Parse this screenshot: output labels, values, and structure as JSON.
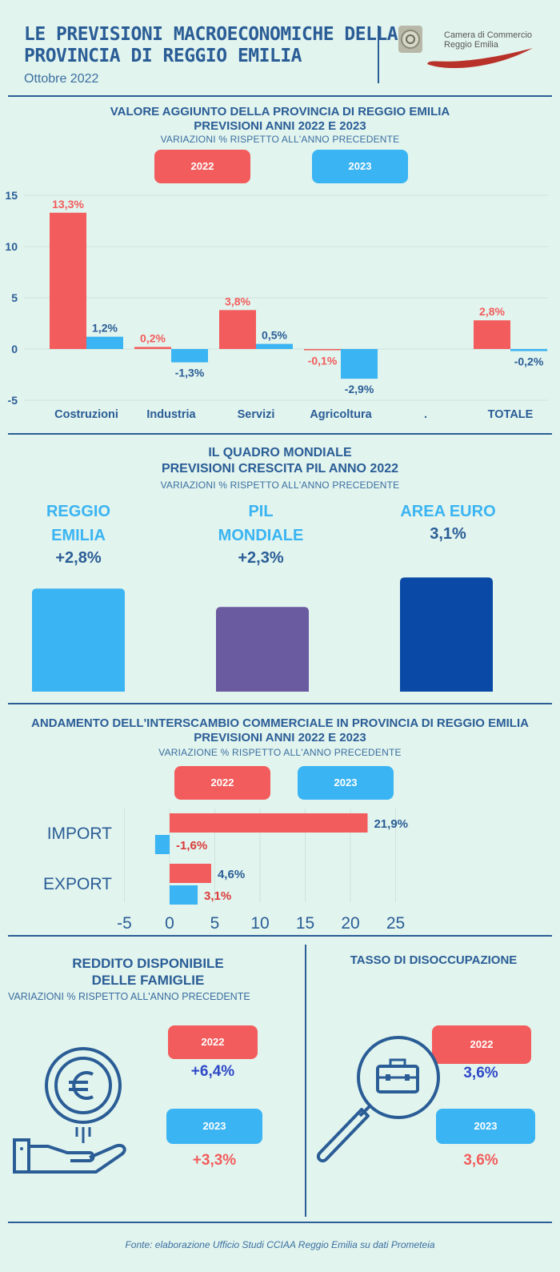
{
  "header": {
    "title_line1": "LE PREVISIONI MACROECONOMICHE DELLA",
    "title_line2": "PROVINCIA DI REGGIO EMILIA",
    "date": "Ottobre 2022",
    "logo_line1": "Camera di Commercio",
    "logo_line2": "Reggio Emilia"
  },
  "section1": {
    "title_line1": "VALORE AGGIUNTO DELLA PROVINCIA DI REGGIO EMILIA",
    "title_line2": "PREVISIONI ANNI 2022 E 2023",
    "subtitle": "VARIAZIONI % RISPETTO ALL'ANNO PRECEDENTE",
    "legend_2022": "2022",
    "legend_2023": "2023"
  },
  "section2": {
    "title_line1": "IL QUADRO MONDIALE",
    "title_line2": "PREVISIONI CRESCITA PIL ANNO 2022",
    "subtitle": "VARIAZIONI % RISPETTO ALL'ANNO PRECEDENTE",
    "items": [
      {
        "label_line1": "REGGIO",
        "label_line2": "EMILIA",
        "value": "+2,8%"
      },
      {
        "label_line1": "PIL",
        "label_line2": "MONDIALE",
        "value": "+2,3%"
      },
      {
        "label_line1": "AREA EURO",
        "label_line2": "",
        "value": "3,1%"
      }
    ]
  },
  "section3": {
    "title_line1": "ANDAMENTO DELL'INTERSCAMBIO COMMERCIALE IN PROVINCIA DI REGGIO EMILIA",
    "title_line2": "PREVISIONI ANNI 2022 E 2023",
    "subtitle": "VARIAZIONE % RISPETTO ALL'ANNO PRECEDENTE",
    "legend_2022": "2022",
    "legend_2023": "2023"
  },
  "section4": {
    "left_title_line1": "REDDITO DISPONIBILE",
    "left_title_line2": "DELLE FAMIGLIE",
    "left_subtitle": "VARIAZIONI % RISPETTO ALL'ANNO PRECEDENTE",
    "left_2022_label": "2022",
    "left_2022_value": "+6,4%",
    "left_2023_label": "2023",
    "left_2023_value": "+3,3%",
    "right_title": "TASSO DI DISOCCUPAZIONE",
    "right_2022_label": "2022",
    "right_2022_value": "3,6%",
    "right_2023_label": "2023",
    "right_2023_value": "3,6%"
  },
  "footer": {
    "source": "Fonte: elaborazione Ufficio Studi CCIAA Reggio Emilia su dati Prometeia"
  },
  "colors": {
    "red": "#f25c5c",
    "blue": "#3ab4f2",
    "navy": "#2a5d96",
    "purple": "#6a5aa0",
    "dark_blue": "#0a4aa6"
  },
  "chart_data": [
    {
      "type": "bar",
      "title": "VALORE AGGIUNTO DELLA PROVINCIA DI REGGIO EMILIA",
      "categories": [
        "Costruzioni",
        "Industria",
        "Servizi",
        "Agricoltura",
        ".",
        "TOTALE"
      ],
      "series": [
        {
          "name": "2022",
          "values": [
            13.3,
            0.2,
            3.8,
            -0.1,
            null,
            2.8
          ],
          "labels": [
            "13,3%",
            "0,2%",
            "3,8%",
            "-0,1%",
            "",
            "2,8%"
          ]
        },
        {
          "name": "2023",
          "values": [
            1.2,
            -1.3,
            0.5,
            -2.9,
            null,
            -0.2
          ],
          "labels": [
            "1,2%",
            "-1,3%",
            "0,5%",
            "-2,9%",
            "",
            "-0,2%"
          ]
        }
      ],
      "yticks": [
        "15",
        "10",
        "5",
        "0",
        "-5"
      ],
      "ylim": [
        -5,
        15
      ]
    },
    {
      "type": "bar",
      "title": "PREVISIONI CRESCITA PIL ANNO 2022",
      "categories": [
        "REGGIO EMILIA",
        "PIL MONDIALE",
        "AREA EURO"
      ],
      "values": [
        2.8,
        2.3,
        3.1
      ]
    },
    {
      "type": "bar",
      "orientation": "horizontal",
      "title": "ANDAMENTO DELL'INTERSCAMBIO COMMERCIALE",
      "categories": [
        "IMPORT",
        "EXPORT"
      ],
      "series": [
        {
          "name": "2022",
          "values": [
            21.9,
            4.6
          ],
          "labels": [
            "21,9%",
            "4,6%"
          ]
        },
        {
          "name": "2023",
          "values": [
            -1.6,
            3.1
          ],
          "labels": [
            "-1,6%",
            "3,1%"
          ]
        }
      ],
      "xticks": [
        "-5",
        "0",
        "5",
        "10",
        "15",
        "20",
        "25"
      ],
      "xlim": [
        -5,
        25
      ]
    }
  ]
}
